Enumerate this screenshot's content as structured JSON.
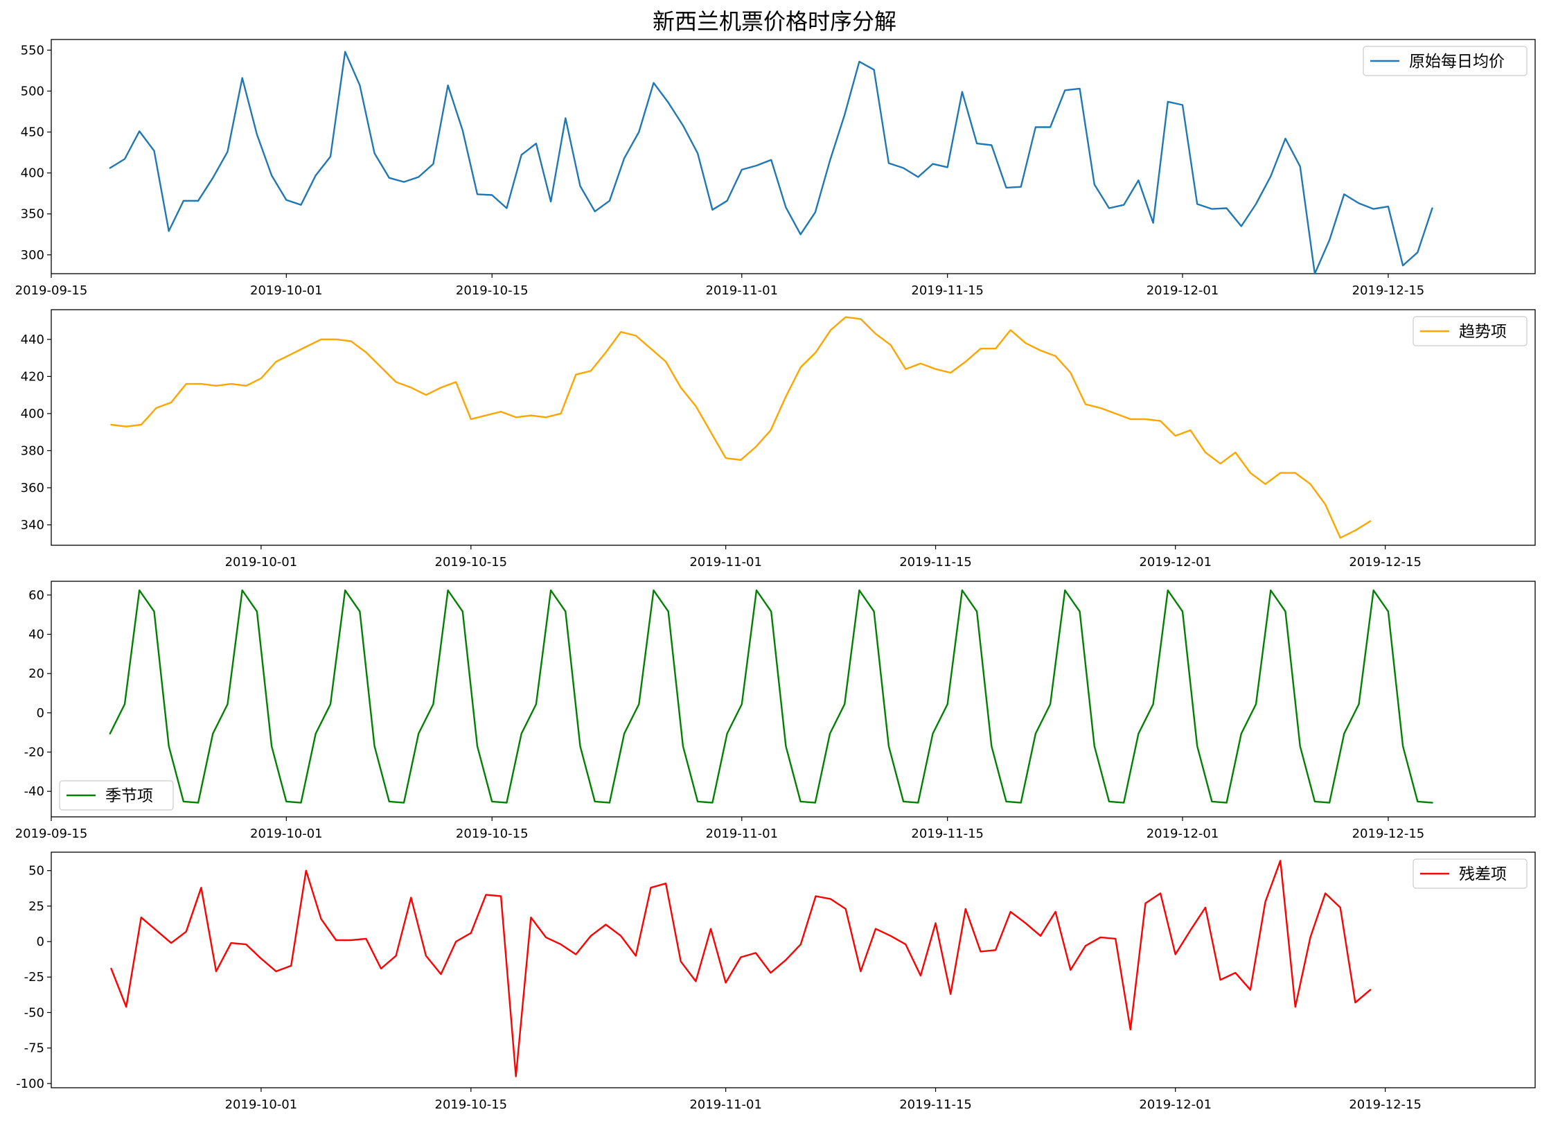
{
  "title": "新西兰机票价格时序分解",
  "chart_data": [
    {
      "type": "line",
      "legend": "原始每日均价",
      "legend_loc": "upper-right",
      "color": "#1f77b4",
      "x_start_day": 0,
      "x_step_days": 1,
      "xlim_days": [
        -4,
        97
      ],
      "xticks": [
        {
          "day": -4,
          "label": "2019-09-15"
        },
        {
          "day": 12,
          "label": "2019-10-01"
        },
        {
          "day": 26,
          "label": "2019-10-15"
        },
        {
          "day": 43,
          "label": "2019-11-01"
        },
        {
          "day": 57,
          "label": "2019-11-15"
        },
        {
          "day": 73,
          "label": "2019-12-01"
        },
        {
          "day": 87,
          "label": "2019-12-15"
        }
      ],
      "ylim": [
        277,
        563
      ],
      "yticks": [
        300,
        350,
        400,
        450,
        500,
        550
      ],
      "values": [
        406,
        417,
        451,
        427,
        329,
        366,
        366,
        394,
        426,
        516,
        447,
        397,
        367,
        361,
        397,
        420,
        548,
        507,
        424,
        394,
        389,
        395,
        411,
        507,
        452,
        374,
        373,
        357,
        422,
        436,
        365,
        467,
        384,
        353,
        366,
        418,
        450,
        510,
        486,
        458,
        424,
        355,
        366,
        404,
        409,
        416,
        358,
        325,
        352,
        415,
        471,
        536,
        526,
        412,
        406,
        395,
        411,
        407,
        499,
        436,
        434,
        382,
        383,
        456,
        456,
        501,
        503,
        386,
        357,
        361,
        391,
        339,
        487,
        483,
        362,
        356,
        357,
        335,
        362,
        396,
        442,
        408,
        277,
        318,
        374,
        363,
        356,
        359,
        287,
        303,
        357
      ]
    },
    {
      "type": "line",
      "legend": "趋势项",
      "legend_loc": "upper-right",
      "color": "#ffa500",
      "x_start_day": 0,
      "x_step_days": 1,
      "xlim_days": [
        -4,
        95
      ],
      "xticks": [
        {
          "day": 10,
          "label": "2019-10-01"
        },
        {
          "day": 24,
          "label": "2019-10-15"
        },
        {
          "day": 41,
          "label": "2019-11-01"
        },
        {
          "day": 55,
          "label": "2019-11-15"
        },
        {
          "day": 71,
          "label": "2019-12-01"
        },
        {
          "day": 85,
          "label": "2019-12-15"
        }
      ],
      "ylim": [
        329,
        456
      ],
      "yticks": [
        340,
        360,
        380,
        400,
        420,
        440
      ],
      "values": [
        394,
        393,
        394,
        403,
        406,
        416,
        416,
        415,
        416,
        415,
        419,
        428,
        432,
        436,
        440,
        440,
        439,
        433,
        425,
        417,
        414,
        410,
        414,
        417,
        397,
        399,
        401,
        398,
        399,
        398,
        400,
        421,
        423,
        433,
        444,
        442,
        435,
        428,
        414,
        404,
        390,
        376,
        375,
        382,
        391,
        409,
        425,
        433,
        445,
        452,
        451,
        443,
        437,
        424,
        427,
        424,
        422,
        428,
        435,
        435,
        445,
        438,
        434,
        431,
        422,
        405,
        403,
        400,
        397,
        397,
        396,
        388,
        391,
        379,
        373,
        379,
        368,
        362,
        368,
        368,
        362,
        351,
        333,
        337,
        342
      ]
    },
    {
      "type": "line",
      "legend": "季节项",
      "legend_loc": "lower-left",
      "color": "#008000",
      "x_start_day": 0,
      "x_step_days": 1,
      "xlim_days": [
        -4,
        97
      ],
      "xticks": [
        {
          "day": -4,
          "label": "2019-09-15"
        },
        {
          "day": 12,
          "label": "2019-10-01"
        },
        {
          "day": 26,
          "label": "2019-10-15"
        },
        {
          "day": 43,
          "label": "2019-11-01"
        },
        {
          "day": 57,
          "label": "2019-11-15"
        },
        {
          "day": 73,
          "label": "2019-12-01"
        },
        {
          "day": 87,
          "label": "2019-12-15"
        }
      ],
      "ylim": [
        -53,
        67
      ],
      "yticks": [
        -40,
        -20,
        0,
        20,
        40,
        60
      ],
      "pattern": [
        -10.6,
        4.4,
        62.4,
        51.6,
        -17.0,
        -45.2,
        -45.8
      ],
      "length": 91
    },
    {
      "type": "line",
      "legend": "残差项",
      "legend_loc": "upper-right",
      "color": "#ff0000",
      "x_start_day": 0,
      "x_step_days": 1,
      "xlim_days": [
        -4,
        95
      ],
      "xticks": [
        {
          "day": 10,
          "label": "2019-10-01"
        },
        {
          "day": 24,
          "label": "2019-10-15"
        },
        {
          "day": 41,
          "label": "2019-11-01"
        },
        {
          "day": 55,
          "label": "2019-11-15"
        },
        {
          "day": 71,
          "label": "2019-12-01"
        },
        {
          "day": 85,
          "label": "2019-12-15"
        }
      ],
      "ylim": [
        -103,
        63
      ],
      "yticks": [
        -100,
        -75,
        -50,
        -25,
        0,
        25,
        50
      ],
      "values": [
        -19,
        -46,
        17,
        8,
        -1,
        7,
        38,
        -21,
        -1,
        -2,
        -12,
        -21,
        -17,
        50,
        16,
        1,
        1,
        2,
        -19,
        -10,
        31,
        -10,
        -23,
        0,
        6,
        33,
        32,
        -95,
        17,
        3,
        -2,
        -9,
        4,
        12,
        4,
        -10,
        38,
        41,
        -14,
        -28,
        9,
        -29,
        -11,
        -8,
        -22,
        -13,
        -2,
        32,
        30,
        23,
        -21,
        9,
        4,
        -2,
        -24,
        13,
        -37,
        23,
        -7,
        -6,
        21,
        13,
        4,
        21,
        -20,
        -3,
        3,
        2,
        -62,
        27,
        34,
        -9,
        8,
        24,
        -27,
        -22,
        -34,
        28,
        57,
        -46,
        3,
        34,
        24,
        -43,
        -34
      ]
    }
  ]
}
